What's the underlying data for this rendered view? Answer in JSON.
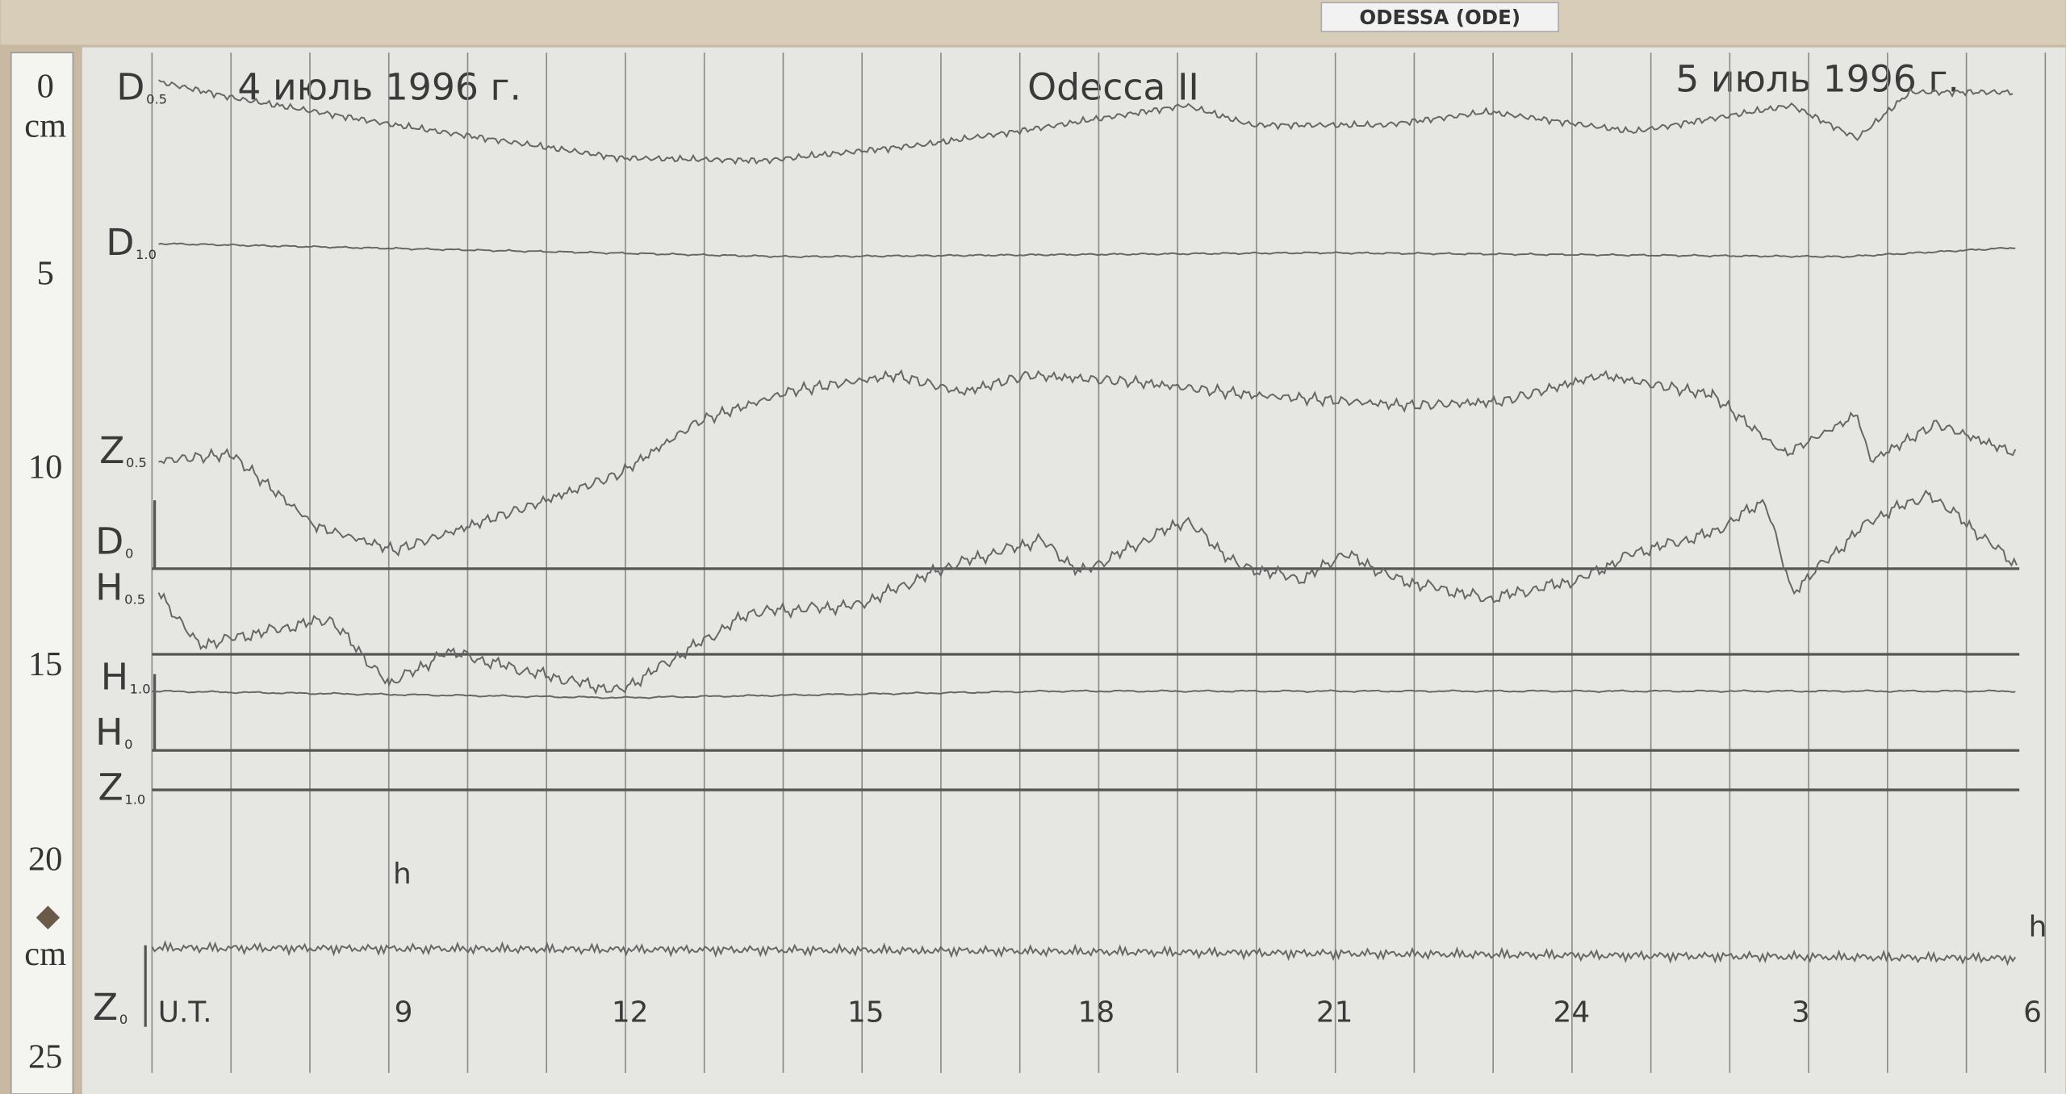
{
  "label_box": "ODESSA (ODE)",
  "header": {
    "left_date": "4 июль 1996 г.",
    "station": "Odecca II",
    "right_date": "5 июль 1996 г."
  },
  "traces": [
    {
      "label": "D",
      "sub": "0.5"
    },
    {
      "label": "D",
      "sub": "1.0"
    },
    {
      "label": "Z",
      "sub": "0.5"
    },
    {
      "label": "D",
      "sub": "0"
    },
    {
      "label": "H",
      "sub": "0.5"
    },
    {
      "label": "H",
      "sub": "1.0"
    },
    {
      "label": "H",
      "sub": "0"
    },
    {
      "label": "Z",
      "sub": "1.0"
    },
    {
      "label": "Z",
      "sub": "0"
    }
  ],
  "ruler": [
    "0",
    "cm",
    "5",
    "10",
    "15",
    "20",
    "cm",
    "25"
  ],
  "hours": [
    "U.T.",
    "9",
    "12",
    "15",
    "18",
    "21",
    "24",
    "3",
    "6"
  ],
  "hour_unit": "h"
}
